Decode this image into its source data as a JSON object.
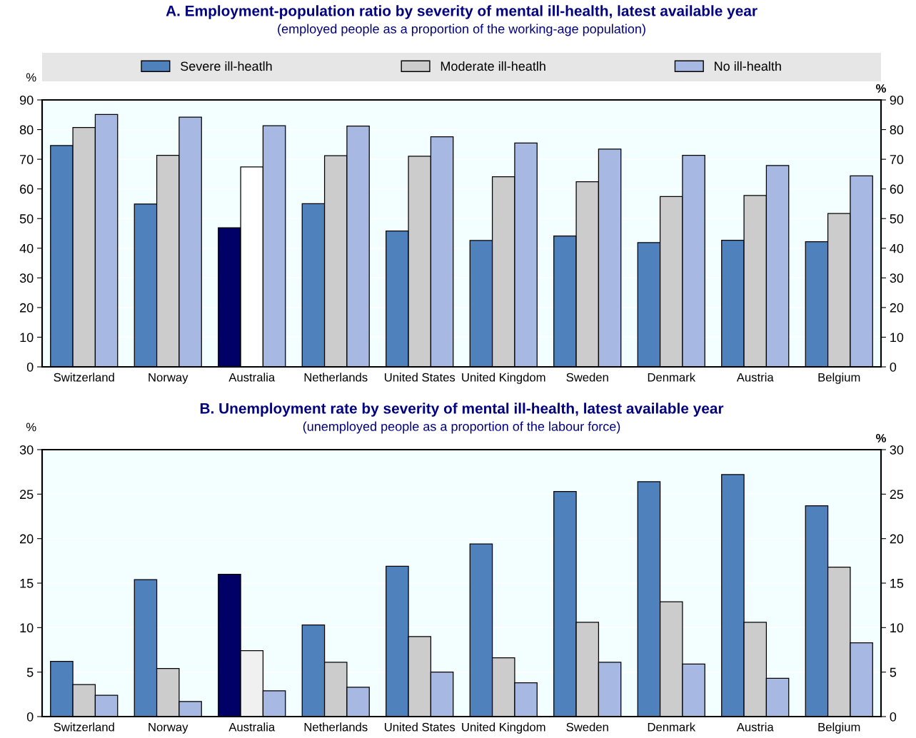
{
  "chart_data": [
    {
      "type": "bar",
      "title": "A. Employment-population ratio by severity of mental ill-health, latest available year",
      "subtitle": "(employed people as a proportion of the working-age population)",
      "ylabel": "%",
      "y2label": "%",
      "categories": [
        "Switzerland",
        "Norway",
        "Australia",
        "Netherlands",
        "United States",
        "United Kingdom",
        "Sweden",
        "Denmark",
        "Austria",
        "Belgium"
      ],
      "series": [
        {
          "name": "Severe ill-heatlh",
          "color": "#4f81bd",
          "colors": [
            "#4f81bd",
            "#4f81bd",
            "#000066",
            "#4f81bd",
            "#4f81bd",
            "#4f81bd",
            "#4f81bd",
            "#4f81bd",
            "#4f81bd",
            "#4f81bd"
          ],
          "values": [
            74.6,
            54.9,
            46.9,
            55.0,
            45.8,
            42.6,
            44.1,
            41.9,
            42.7,
            42.2
          ]
        },
        {
          "name": "Moderate ill-heatlh",
          "color": "#cccccc",
          "colors": [
            "#cccccc",
            "#cccccc",
            "#ffffff",
            "#cccccc",
            "#cccccc",
            "#cccccc",
            "#cccccc",
            "#cccccc",
            "#cccccc",
            "#cccccc"
          ],
          "values": [
            80.7,
            71.3,
            67.4,
            71.2,
            71.0,
            64.1,
            62.4,
            57.4,
            57.8,
            51.7
          ]
        },
        {
          "name": "No ill-health",
          "color": "#a7b9e3",
          "values": [
            85.1,
            84.2,
            81.3,
            81.2,
            77.6,
            75.5,
            73.4,
            71.3,
            67.9,
            64.4
          ]
        }
      ],
      "ylim": [
        0,
        90
      ],
      "yticks": [
        0,
        10,
        20,
        30,
        40,
        50,
        60,
        70,
        80,
        90
      ],
      "y2lim": [
        0,
        90
      ],
      "y2ticks": [
        0,
        10,
        20,
        30,
        40,
        50,
        60,
        70,
        80,
        90
      ],
      "grid": "y",
      "legend": "top"
    },
    {
      "type": "bar",
      "title": "B. Unemployment rate by severity of mental ill-health, latest available year",
      "subtitle": "(unemployed people as a proportion of the labour force)",
      "ylabel": "%",
      "y2label": "%",
      "categories": [
        "Switzerland",
        "Norway",
        "Australia",
        "Netherlands",
        "United States",
        "United Kingdom",
        "Sweden",
        "Denmark",
        "Austria",
        "Belgium"
      ],
      "series": [
        {
          "colors": [
            "#4f81bd",
            "#4f81bd",
            "#000066",
            "#4f81bd",
            "#4f81bd",
            "#4f81bd",
            "#4f81bd",
            "#4f81bd",
            "#4f81bd",
            "#4f81bd"
          ],
          "values": [
            6.2,
            15.4,
            16.0,
            10.3,
            16.9,
            19.4,
            25.3,
            26.4,
            27.2,
            23.7
          ]
        },
        {
          "colors": [
            "#cccccc",
            "#cccccc",
            "#f0f0f0",
            "#cccccc",
            "#cccccc",
            "#cccccc",
            "#cccccc",
            "#cccccc",
            "#cccccc",
            "#cccccc"
          ],
          "values": [
            3.6,
            5.4,
            7.4,
            6.1,
            9.0,
            6.6,
            10.6,
            12.9,
            10.6,
            16.8
          ]
        },
        {
          "color": "#a7b9e3",
          "values": [
            2.4,
            1.7,
            2.9,
            3.3,
            5.0,
            3.8,
            6.1,
            5.9,
            4.3,
            8.3
          ]
        }
      ],
      "ylim": [
        0,
        30
      ],
      "yticks": [
        0,
        5,
        10,
        15,
        20,
        25,
        30
      ],
      "y2lim": [
        0,
        30
      ],
      "y2ticks": [
        0,
        5,
        10,
        15,
        20,
        25,
        30
      ],
      "grid": "y"
    }
  ]
}
